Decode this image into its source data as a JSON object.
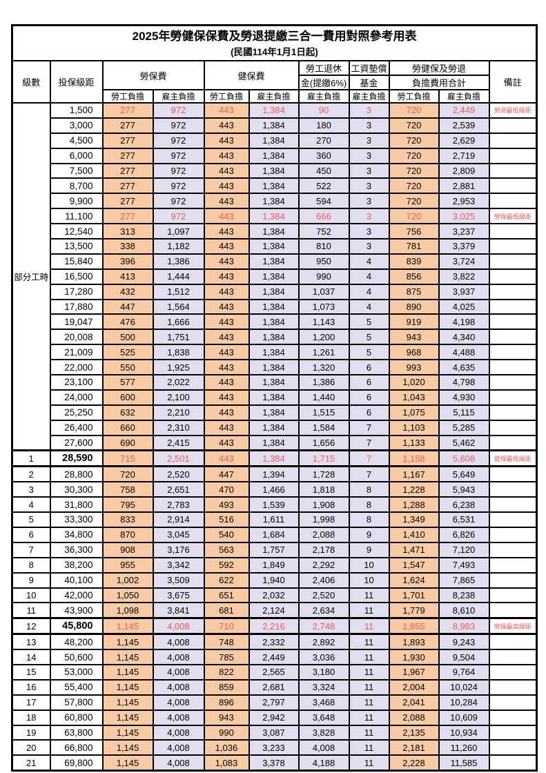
{
  "title": "2025年勞健保保費及勞退提繳三合一費用對照參考用表",
  "subtitle": "(民國114年1月1日起)",
  "header": {
    "level": "級數",
    "bracket": "投保級距",
    "labor_insurance": "勞保費",
    "health_insurance": "健保費",
    "pension_line1": "勞工退休",
    "pension_line2": "金(提繳6%)",
    "wage_fund_line1": "工資墊償",
    "wage_fund_line2": "基金",
    "total_line1": "勞健保及勞退",
    "total_line2": "負擔費用合計",
    "remark": "備註",
    "worker": "勞工負擔",
    "employer": "雇主負擔"
  },
  "part_time_label": "部分工時",
  "part_time_span": 23,
  "colors": {
    "worker_bg": "#F8CBA4",
    "employer_bg": "#E1DEF0",
    "highlight_text": "#F85A58",
    "border": "#000000"
  },
  "rows": [
    {
      "lv": "",
      "br": "1,500",
      "v": [
        "277",
        "972",
        "443",
        "1,384",
        "90",
        "3",
        "720",
        "2,449"
      ],
      "rm": "勞退最低級距",
      "red": true,
      "key": false
    },
    {
      "lv": "",
      "br": "3,000",
      "v": [
        "277",
        "972",
        "443",
        "1,384",
        "180",
        "3",
        "720",
        "2,539"
      ],
      "rm": "",
      "red": false,
      "key": false
    },
    {
      "lv": "",
      "br": "4,500",
      "v": [
        "277",
        "972",
        "443",
        "1,384",
        "270",
        "3",
        "720",
        "2,629"
      ],
      "rm": "",
      "red": false,
      "key": false
    },
    {
      "lv": "",
      "br": "6,000",
      "v": [
        "277",
        "972",
        "443",
        "1,384",
        "360",
        "3",
        "720",
        "2,719"
      ],
      "rm": "",
      "red": false,
      "key": false
    },
    {
      "lv": "",
      "br": "7,500",
      "v": [
        "277",
        "972",
        "443",
        "1,384",
        "450",
        "3",
        "720",
        "2,809"
      ],
      "rm": "",
      "red": false,
      "key": false
    },
    {
      "lv": "",
      "br": "8,700",
      "v": [
        "277",
        "972",
        "443",
        "1,384",
        "522",
        "3",
        "720",
        "2,881"
      ],
      "rm": "",
      "red": false,
      "key": false
    },
    {
      "lv": "",
      "br": "9,900",
      "v": [
        "277",
        "972",
        "443",
        "1,384",
        "594",
        "3",
        "720",
        "2,953"
      ],
      "rm": "",
      "red": false,
      "key": false
    },
    {
      "lv": "",
      "br": "11,100",
      "v": [
        "277",
        "972",
        "443",
        "1,384",
        "666",
        "3",
        "720",
        "3,025"
      ],
      "rm": "勞保最低級距",
      "red": true,
      "key": false
    },
    {
      "lv": "",
      "br": "12,540",
      "v": [
        "313",
        "1,097",
        "443",
        "1,384",
        "752",
        "3",
        "756",
        "3,237"
      ],
      "rm": "",
      "red": false,
      "key": false
    },
    {
      "lv": "",
      "br": "13,500",
      "v": [
        "338",
        "1,182",
        "443",
        "1,384",
        "810",
        "3",
        "781",
        "3,379"
      ],
      "rm": "",
      "red": false,
      "key": false
    },
    {
      "lv": "",
      "br": "15,840",
      "v": [
        "396",
        "1,386",
        "443",
        "1,384",
        "950",
        "4",
        "839",
        "3,724"
      ],
      "rm": "",
      "red": false,
      "key": false
    },
    {
      "lv": "",
      "br": "16,500",
      "v": [
        "413",
        "1,444",
        "443",
        "1,384",
        "990",
        "4",
        "856",
        "3,822"
      ],
      "rm": "",
      "red": false,
      "key": false
    },
    {
      "lv": "",
      "br": "17,280",
      "v": [
        "432",
        "1,512",
        "443",
        "1,384",
        "1,037",
        "4",
        "875",
        "3,937"
      ],
      "rm": "",
      "red": false,
      "key": false
    },
    {
      "lv": "",
      "br": "17,880",
      "v": [
        "447",
        "1,564",
        "443",
        "1,384",
        "1,073",
        "4",
        "890",
        "4,025"
      ],
      "rm": "",
      "red": false,
      "key": false
    },
    {
      "lv": "",
      "br": "19,047",
      "v": [
        "476",
        "1,666",
        "443",
        "1,384",
        "1,143",
        "5",
        "919",
        "4,198"
      ],
      "rm": "",
      "red": false,
      "key": false
    },
    {
      "lv": "",
      "br": "20,008",
      "v": [
        "500",
        "1,751",
        "443",
        "1,384",
        "1,200",
        "5",
        "943",
        "4,340"
      ],
      "rm": "",
      "red": false,
      "key": false
    },
    {
      "lv": "",
      "br": "21,009",
      "v": [
        "525",
        "1,838",
        "443",
        "1,384",
        "1,261",
        "5",
        "968",
        "4,488"
      ],
      "rm": "",
      "red": false,
      "key": false
    },
    {
      "lv": "",
      "br": "22,000",
      "v": [
        "550",
        "1,925",
        "443",
        "1,384",
        "1,320",
        "6",
        "993",
        "4,635"
      ],
      "rm": "",
      "red": false,
      "key": false
    },
    {
      "lv": "",
      "br": "23,100",
      "v": [
        "577",
        "2,022",
        "443",
        "1,384",
        "1,386",
        "6",
        "1,020",
        "4,798"
      ],
      "rm": "",
      "red": false,
      "key": false
    },
    {
      "lv": "",
      "br": "24,000",
      "v": [
        "600",
        "2,100",
        "443",
        "1,384",
        "1,440",
        "6",
        "1,043",
        "4,930"
      ],
      "rm": "",
      "red": false,
      "key": false
    },
    {
      "lv": "",
      "br": "25,250",
      "v": [
        "632",
        "2,210",
        "443",
        "1,384",
        "1,515",
        "6",
        "1,075",
        "5,115"
      ],
      "rm": "",
      "red": false,
      "key": false
    },
    {
      "lv": "",
      "br": "26,400",
      "v": [
        "660",
        "2,310",
        "443",
        "1,384",
        "1,584",
        "7",
        "1,103",
        "5,285"
      ],
      "rm": "",
      "red": false,
      "key": false
    },
    {
      "lv": "",
      "br": "27,600",
      "v": [
        "690",
        "2,415",
        "443",
        "1,384",
        "1,656",
        "7",
        "1,133",
        "5,462"
      ],
      "rm": "",
      "red": false,
      "key": false
    },
    {
      "lv": "1",
      "br": "28,590",
      "v": [
        "715",
        "2,501",
        "443",
        "1,384",
        "1,715",
        "7",
        "1,158",
        "5,608"
      ],
      "rm": "健保最低級距",
      "red": true,
      "key": true
    },
    {
      "lv": "2",
      "br": "28,800",
      "v": [
        "720",
        "2,520",
        "447",
        "1,394",
        "1,728",
        "7",
        "1,167",
        "5,649"
      ],
      "rm": "",
      "red": false,
      "key": false
    },
    {
      "lv": "3",
      "br": "30,300",
      "v": [
        "758",
        "2,651",
        "470",
        "1,466",
        "1,818",
        "8",
        "1,228",
        "5,943"
      ],
      "rm": "",
      "red": false,
      "key": false
    },
    {
      "lv": "4",
      "br": "31,800",
      "v": [
        "795",
        "2,783",
        "493",
        "1,539",
        "1,908",
        "8",
        "1,288",
        "6,238"
      ],
      "rm": "",
      "red": false,
      "key": false
    },
    {
      "lv": "5",
      "br": "33,300",
      "v": [
        "833",
        "2,914",
        "516",
        "1,611",
        "1,998",
        "8",
        "1,349",
        "6,531"
      ],
      "rm": "",
      "red": false,
      "key": false
    },
    {
      "lv": "6",
      "br": "34,800",
      "v": [
        "870",
        "3,045",
        "540",
        "1,684",
        "2,088",
        "9",
        "1,410",
        "6,826"
      ],
      "rm": "",
      "red": false,
      "key": false
    },
    {
      "lv": "7",
      "br": "36,300",
      "v": [
        "908",
        "3,176",
        "563",
        "1,757",
        "2,178",
        "9",
        "1,471",
        "7,120"
      ],
      "rm": "",
      "red": false,
      "key": false
    },
    {
      "lv": "8",
      "br": "38,200",
      "v": [
        "955",
        "3,342",
        "592",
        "1,849",
        "2,292",
        "10",
        "1,547",
        "7,493"
      ],
      "rm": "",
      "red": false,
      "key": false
    },
    {
      "lv": "9",
      "br": "40,100",
      "v": [
        "1,002",
        "3,509",
        "622",
        "1,940",
        "2,406",
        "10",
        "1,624",
        "7,865"
      ],
      "rm": "",
      "red": false,
      "key": false
    },
    {
      "lv": "10",
      "br": "42,000",
      "v": [
        "1,050",
        "3,675",
        "651",
        "2,032",
        "2,520",
        "11",
        "1,701",
        "8,238"
      ],
      "rm": "",
      "red": false,
      "key": false
    },
    {
      "lv": "11",
      "br": "43,900",
      "v": [
        "1,098",
        "3,841",
        "681",
        "2,124",
        "2,634",
        "11",
        "1,779",
        "8,610"
      ],
      "rm": "",
      "red": false,
      "key": false
    },
    {
      "lv": "12",
      "br": "45,800",
      "v": [
        "1,145",
        "4,008",
        "710",
        "2,216",
        "2,748",
        "11",
        "1,855",
        "8,983"
      ],
      "rm": "勞保最高級距",
      "red": true,
      "key": true
    },
    {
      "lv": "13",
      "br": "48,200",
      "v": [
        "1,145",
        "4,008",
        "748",
        "2,332",
        "2,892",
        "11",
        "1,893",
        "9,243"
      ],
      "rm": "",
      "red": false,
      "key": false
    },
    {
      "lv": "14",
      "br": "50,600",
      "v": [
        "1,145",
        "4,008",
        "785",
        "2,449",
        "3,036",
        "11",
        "1,930",
        "9,504"
      ],
      "rm": "",
      "red": false,
      "key": false
    },
    {
      "lv": "15",
      "br": "53,000",
      "v": [
        "1,145",
        "4,008",
        "822",
        "2,565",
        "3,180",
        "11",
        "1,967",
        "9,764"
      ],
      "rm": "",
      "red": false,
      "key": false
    },
    {
      "lv": "16",
      "br": "55,400",
      "v": [
        "1,145",
        "4,008",
        "859",
        "2,681",
        "3,324",
        "11",
        "2,004",
        "10,024"
      ],
      "rm": "",
      "red": false,
      "key": false
    },
    {
      "lv": "17",
      "br": "57,800",
      "v": [
        "1,145",
        "4,008",
        "896",
        "2,797",
        "3,468",
        "11",
        "2,041",
        "10,284"
      ],
      "rm": "",
      "red": false,
      "key": false
    },
    {
      "lv": "18",
      "br": "60,800",
      "v": [
        "1,145",
        "4,008",
        "943",
        "2,942",
        "3,648",
        "11",
        "2,088",
        "10,609"
      ],
      "rm": "",
      "red": false,
      "key": false
    },
    {
      "lv": "19",
      "br": "63,800",
      "v": [
        "1,145",
        "4,008",
        "990",
        "3,087",
        "3,828",
        "11",
        "2,135",
        "10,934"
      ],
      "rm": "",
      "red": false,
      "key": false
    },
    {
      "lv": "20",
      "br": "66,800",
      "v": [
        "1,145",
        "4,008",
        "1,036",
        "3,233",
        "4,008",
        "11",
        "2,181",
        "11,260"
      ],
      "rm": "",
      "red": false,
      "key": false
    },
    {
      "lv": "21",
      "br": "69,800",
      "v": [
        "1,145",
        "4,008",
        "1,083",
        "3,378",
        "4,188",
        "11",
        "2,228",
        "11,585"
      ],
      "rm": "",
      "red": false,
      "key": false
    }
  ]
}
